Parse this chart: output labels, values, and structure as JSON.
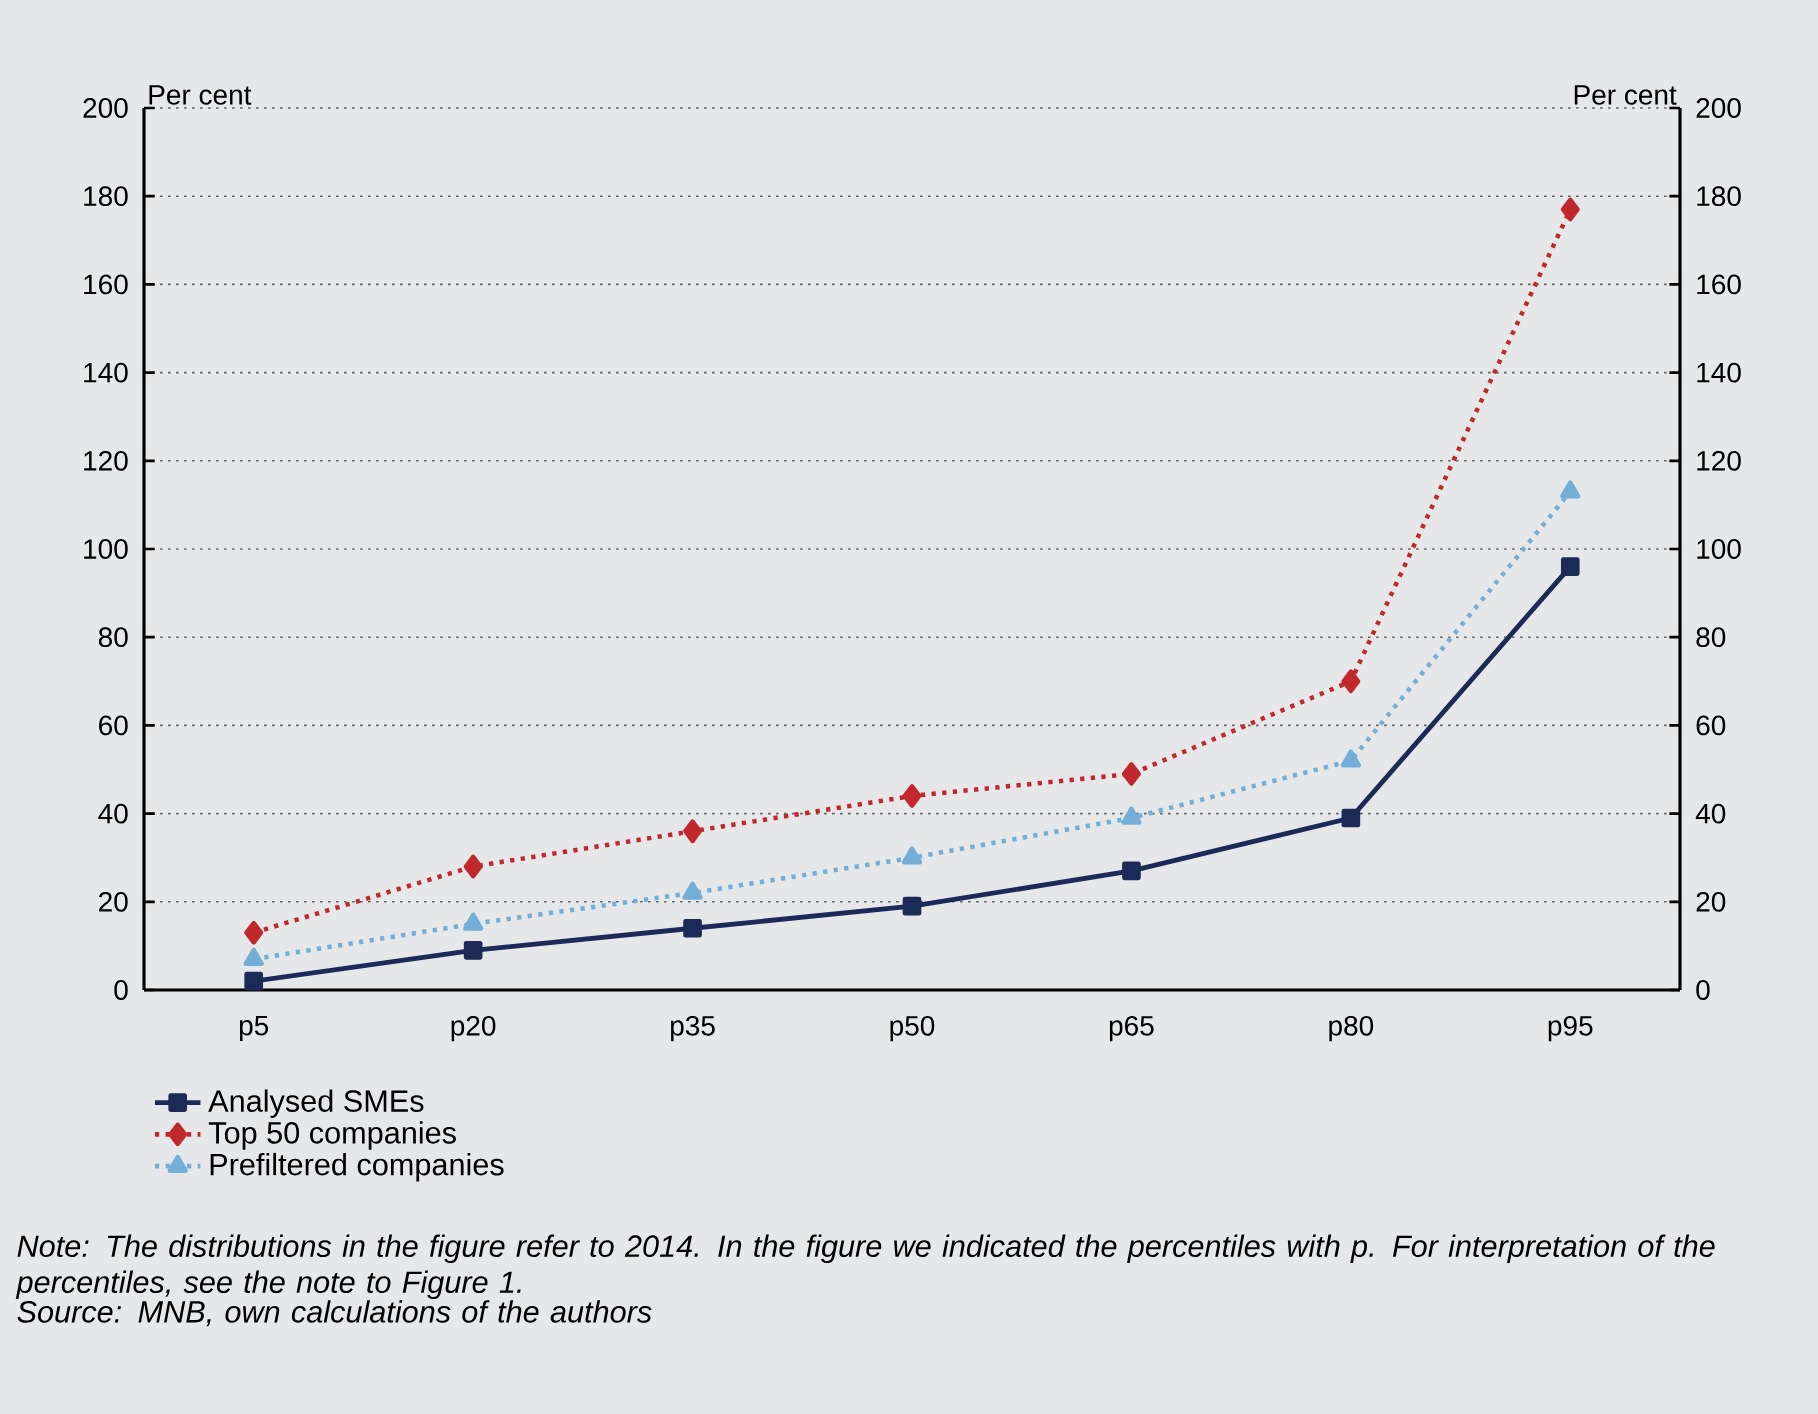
{
  "chart_data": {
    "type": "line",
    "categories": [
      "p5",
      "p20",
      "p35",
      "p50",
      "p65",
      "p80",
      "p95"
    ],
    "series": [
      {
        "name": "Analysed SMEs",
        "color": "#1b2a56",
        "marker": "square",
        "line_style": "solid",
        "values": [
          2,
          9,
          14,
          19,
          27,
          39,
          96
        ]
      },
      {
        "name": "Top 50 companies",
        "color": "#c0282d",
        "marker": "diamond",
        "line_style": "dotted",
        "values": [
          13,
          28,
          36,
          44,
          49,
          70,
          177
        ]
      },
      {
        "name": "Prefiltered companies",
        "color": "#72aed6",
        "marker": "triangle",
        "line_style": "dotted",
        "values": [
          7,
          15,
          22,
          30,
          39,
          52,
          113
        ]
      }
    ],
    "ylabel": "Per cent",
    "y2label": "Per cent",
    "ylim": [
      0,
      200
    ],
    "yticks": [
      0,
      20,
      40,
      60,
      80,
      100,
      120,
      140,
      160,
      180,
      200
    ],
    "y2lim": [
      0,
      200
    ],
    "y2ticks": [
      0,
      20,
      40,
      60,
      80,
      100,
      120,
      140,
      160,
      180,
      200
    ],
    "grid": "y",
    "legend": "bottom left",
    "annotations": [
      "Note: The distributions in the figure refer to 2014. In the figure we indicated the percentiles with p. For interpretation of the percentiles, see the note to Figure 1.",
      "Source: MNB, own calculations of the authors"
    ]
  }
}
